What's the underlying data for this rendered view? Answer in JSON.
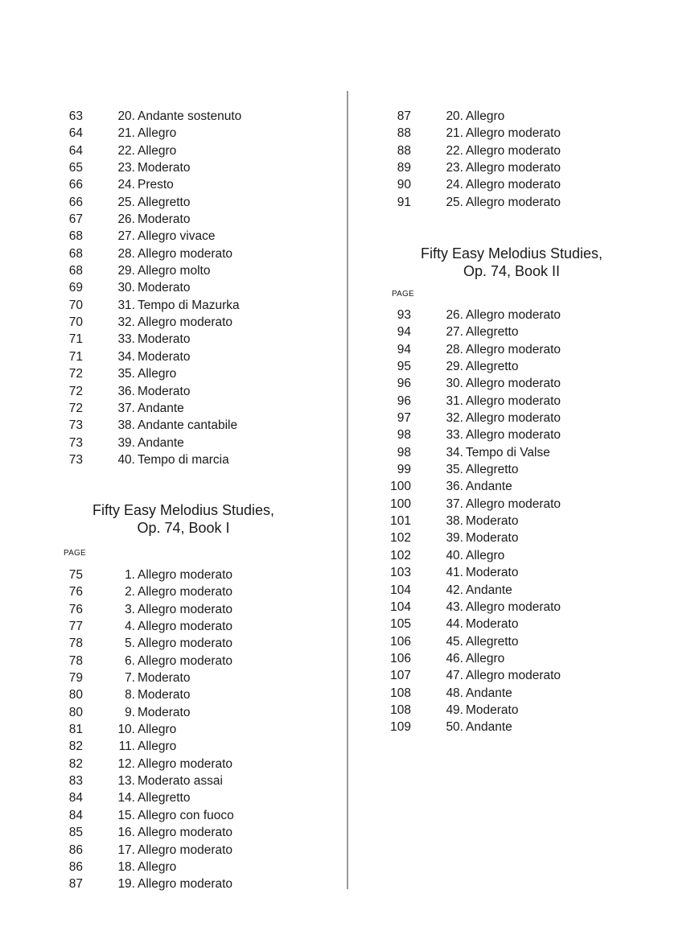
{
  "left": {
    "entries_top": [
      [
        "63",
        "20.",
        "Andante sostenuto"
      ],
      [
        "64",
        "21.",
        "Allegro"
      ],
      [
        "64",
        "22.",
        "Allegro"
      ],
      [
        "65",
        "23.",
        "Moderato"
      ],
      [
        "66",
        "24.",
        "Presto"
      ],
      [
        "66",
        "25.",
        "Allegretto"
      ],
      [
        "67",
        "26.",
        "Moderato"
      ],
      [
        "68",
        "27.",
        "Allegro vivace"
      ],
      [
        "68",
        "28.",
        "Allegro moderato"
      ],
      [
        "68",
        "29.",
        "Allegro molto"
      ],
      [
        "69",
        "30.",
        "Moderato"
      ],
      [
        "70",
        "31.",
        "Tempo di Mazurka"
      ],
      [
        "70",
        "32.",
        "Allegro moderato"
      ],
      [
        "71",
        "33.",
        "Moderato"
      ],
      [
        "71",
        "34.",
        "Moderato"
      ],
      [
        "72",
        "35.",
        "Allegro"
      ],
      [
        "72",
        "36.",
        "Moderato"
      ],
      [
        "72",
        "37.",
        "Andante"
      ],
      [
        "73",
        "38.",
        "Andante cantabile"
      ],
      [
        "73",
        "39.",
        "Andante"
      ],
      [
        "73",
        "40.",
        "Tempo di marcia"
      ]
    ],
    "heading_line1": "Fifty Easy Melodius Studies,",
    "heading_line2": "Op. 74, Book I",
    "page_label": "PAGE",
    "entries_book": [
      [
        "75",
        "1.",
        "Allegro moderato"
      ],
      [
        "76",
        "2.",
        "Allegro moderato"
      ],
      [
        "76",
        "3.",
        "Allegro moderato"
      ],
      [
        "77",
        "4.",
        "Allegro moderato"
      ],
      [
        "78",
        "5.",
        "Allegro moderato"
      ],
      [
        "78",
        "6.",
        "Allegro moderato"
      ],
      [
        "79",
        "7.",
        "Moderato"
      ],
      [
        "80",
        "8.",
        "Moderato"
      ],
      [
        "80",
        "9.",
        "Moderato"
      ],
      [
        "81",
        "10.",
        "Allegro"
      ],
      [
        "82",
        "11.",
        "Allegro"
      ],
      [
        "82",
        "12.",
        "Allegro moderato"
      ],
      [
        "83",
        "13.",
        "Moderato assai"
      ],
      [
        "84",
        "14.",
        "Allegretto"
      ],
      [
        "84",
        "15.",
        "Allegro con fuoco"
      ],
      [
        "85",
        "16.",
        "Allegro moderato"
      ],
      [
        "86",
        "17.",
        "Allegro moderato"
      ],
      [
        "86",
        "18.",
        "Allegro"
      ],
      [
        "87",
        "19.",
        "Allegro moderato"
      ]
    ]
  },
  "right": {
    "entries_top": [
      [
        "87",
        "20.",
        "Allegro"
      ],
      [
        "88",
        "21.",
        "Allegro moderato"
      ],
      [
        "88",
        "22.",
        "Allegro moderato"
      ],
      [
        "89",
        "23.",
        "Allegro moderato"
      ],
      [
        "90",
        "24.",
        "Allegro moderato"
      ],
      [
        "91",
        "25.",
        "Allegro moderato"
      ]
    ],
    "heading_line1": "Fifty Easy Melodius Studies,",
    "heading_line2": "Op. 74, Book II",
    "page_label": "PAGE",
    "entries_book": [
      [
        "93",
        "26.",
        "Allegro moderato"
      ],
      [
        "94",
        "27.",
        "Allegretto"
      ],
      [
        "94",
        "28.",
        "Allegro moderato"
      ],
      [
        "95",
        "29.",
        "Allegretto"
      ],
      [
        "96",
        "30.",
        "Allegro moderato"
      ],
      [
        "96",
        "31.",
        "Allegro moderato"
      ],
      [
        "97",
        "32.",
        "Allegro moderato"
      ],
      [
        "98",
        "33.",
        "Allegro moderato"
      ],
      [
        "98",
        "34.",
        "Tempo di Valse"
      ],
      [
        "99",
        "35.",
        "Allegretto"
      ],
      [
        "100",
        "36.",
        "Andante"
      ],
      [
        "100",
        "37.",
        "Allegro moderato"
      ],
      [
        "101",
        "38.",
        "Moderato"
      ],
      [
        "102",
        "39.",
        "Moderato"
      ],
      [
        "102",
        "40.",
        "Allegro"
      ],
      [
        "103",
        "41.",
        "Moderato"
      ],
      [
        "104",
        "42.",
        "Andante"
      ],
      [
        "104",
        "43.",
        "Allegro moderato"
      ],
      [
        "105",
        "44.",
        "Moderato"
      ],
      [
        "106",
        "45.",
        "Allegretto"
      ],
      [
        "106",
        "46.",
        "Allegro"
      ],
      [
        "107",
        "47.",
        "Allegro moderato"
      ],
      [
        "108",
        "48.",
        "Andante"
      ],
      [
        "108",
        "49.",
        "Moderato"
      ],
      [
        "109",
        "50.",
        "Andante"
      ]
    ]
  }
}
